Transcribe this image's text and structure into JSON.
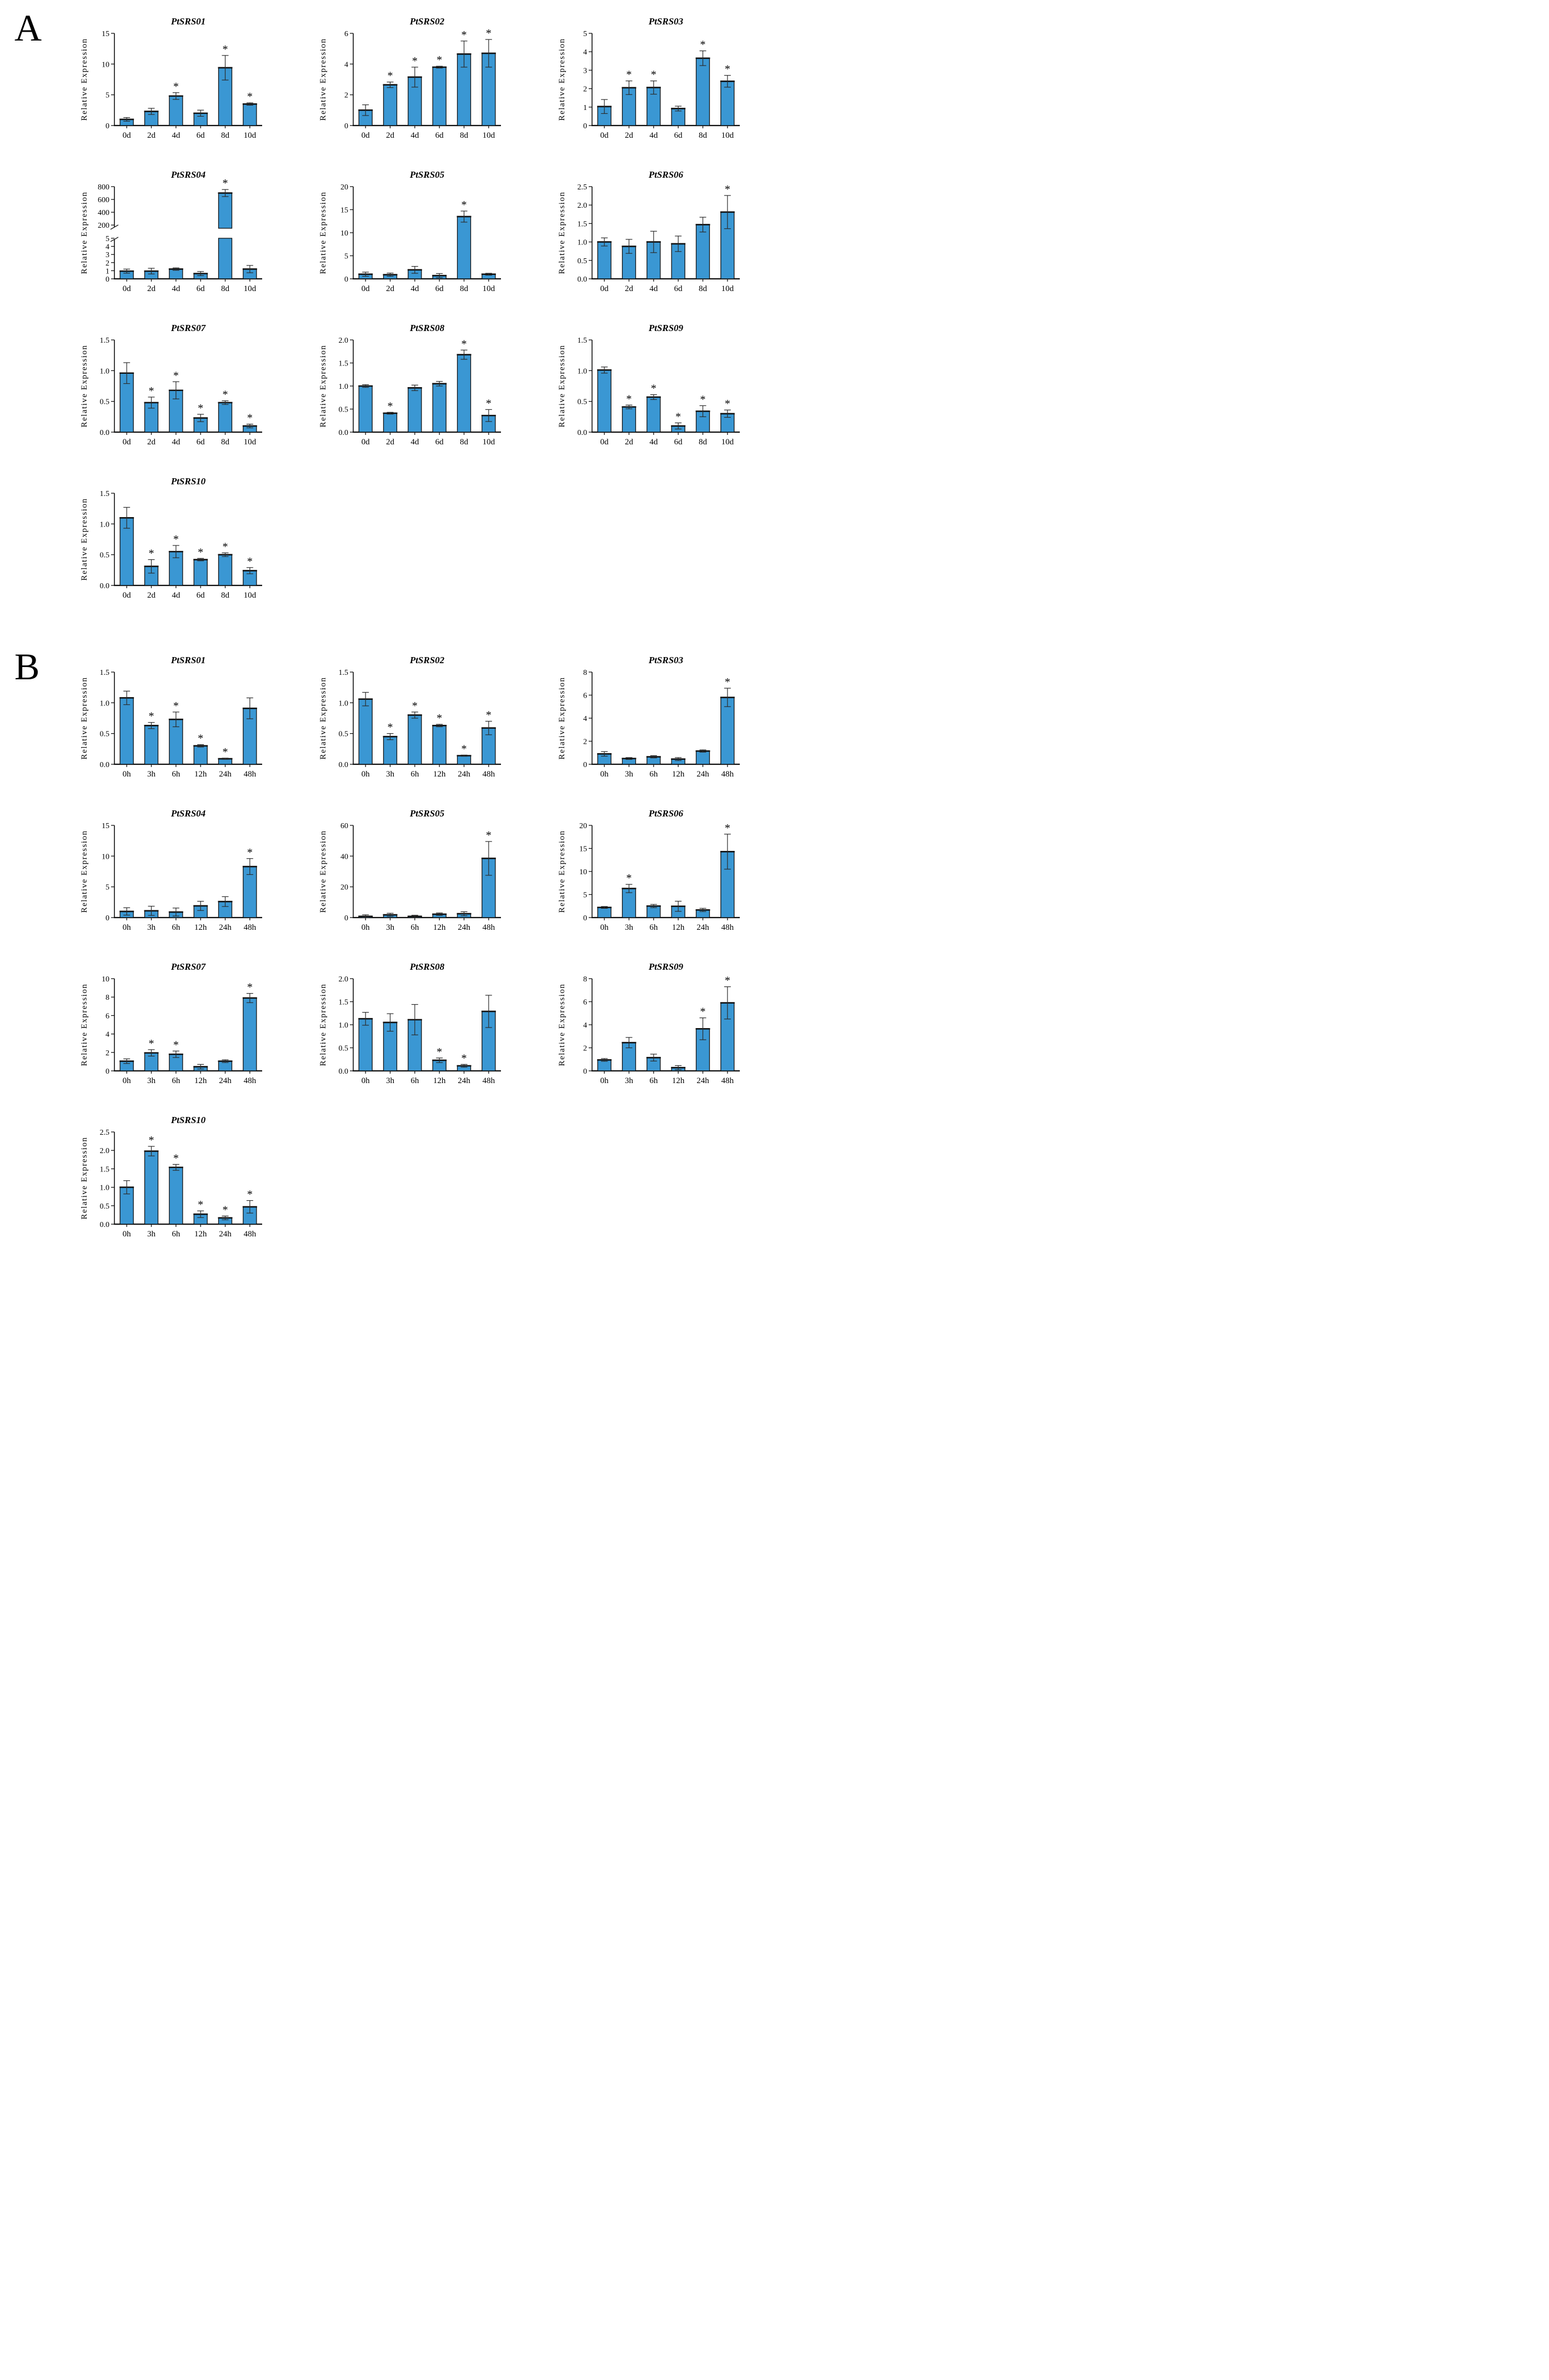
{
  "chart_data": {
    "type": "bar",
    "ylabel": "Relative Expression",
    "bar_color": "#3A97D3",
    "bar_stroke": "#111111",
    "error_color": "#2b2b2b",
    "significance_marker": "*",
    "panels": [
      {
        "label": "A",
        "categories": [
          "0d",
          "2d",
          "4d",
          "6d",
          "8d",
          "10d"
        ],
        "charts": [
          {
            "title": "PtSRS01",
            "ymax": 15,
            "yticks": [
              0,
              5,
              10,
              15
            ],
            "values": [
              1.0,
              2.3,
              4.8,
              2.0,
              9.4,
              3.5
            ],
            "errors": [
              0.3,
              0.5,
              0.55,
              0.5,
              2.0,
              0.2
            ],
            "sig": [
              false,
              false,
              true,
              false,
              true,
              true
            ]
          },
          {
            "title": "PtSRS02",
            "ymax": 6,
            "yticks": [
              0,
              2,
              4,
              6
            ],
            "values": [
              1.0,
              2.65,
              3.15,
              3.8,
              4.65,
              4.7
            ],
            "errors": [
              0.35,
              0.18,
              0.65,
              0.06,
              0.85,
              0.9
            ],
            "sig": [
              false,
              true,
              true,
              true,
              true,
              true
            ]
          },
          {
            "title": "PtSRS03",
            "ymax": 5,
            "yticks": [
              0,
              1,
              2,
              3,
              4,
              5
            ],
            "values": [
              1.03,
              2.05,
              2.06,
              0.92,
              3.65,
              2.4
            ],
            "errors": [
              0.38,
              0.37,
              0.36,
              0.13,
              0.4,
              0.32
            ],
            "sig": [
              false,
              true,
              true,
              false,
              true,
              true
            ]
          },
          {
            "title": "PtSRS04",
            "ymax": 800,
            "yticks": [],
            "axis_break": {
              "lower_max": 5,
              "lower_ticks": [
                0,
                1,
                2,
                3,
                4,
                5
              ],
              "upper_min": 150,
              "upper_max": 800,
              "upper_ticks": [
                200,
                400,
                600,
                800
              ]
            },
            "values": [
              0.95,
              0.95,
              1.2,
              0.65,
              700,
              1.2
            ],
            "errors": [
              0.25,
              0.35,
              0.15,
              0.25,
              55,
              0.45
            ],
            "sig": [
              false,
              false,
              false,
              false,
              true,
              false
            ]
          },
          {
            "title": "PtSRS05",
            "ymax": 20,
            "yticks": [
              0,
              5,
              10,
              15,
              20
            ],
            "values": [
              1.0,
              0.9,
              1.95,
              0.7,
              13.5,
              1.0
            ],
            "errors": [
              0.45,
              0.35,
              0.75,
              0.45,
              1.2,
              0.2
            ],
            "sig": [
              false,
              false,
              false,
              false,
              true,
              false
            ]
          },
          {
            "title": "PtSRS06",
            "ymax": 2.5,
            "yticks": [
              0,
              0.5,
              1,
              1.5,
              2,
              2.5
            ],
            "values": [
              1.0,
              0.88,
              1.0,
              0.95,
              1.47,
              1.81
            ],
            "errors": [
              0.11,
              0.19,
              0.29,
              0.21,
              0.2,
              0.45
            ],
            "sig": [
              false,
              false,
              false,
              false,
              false,
              true
            ]
          },
          {
            "title": "PtSRS07",
            "ymax": 1.5,
            "yticks": [
              0,
              0.5,
              1,
              1.5
            ],
            "values": [
              0.96,
              0.48,
              0.68,
              0.23,
              0.48,
              0.1
            ],
            "errors": [
              0.17,
              0.09,
              0.14,
              0.06,
              0.03,
              0.03
            ],
            "sig": [
              false,
              true,
              true,
              true,
              true,
              true
            ]
          },
          {
            "title": "PtSRS08",
            "ymax": 2,
            "yticks": [
              0,
              0.5,
              1,
              1.5,
              2
            ],
            "values": [
              1.0,
              0.41,
              0.96,
              1.05,
              1.68,
              0.36
            ],
            "errors": [
              0.03,
              0.02,
              0.06,
              0.05,
              0.1,
              0.13
            ],
            "sig": [
              false,
              true,
              false,
              false,
              true,
              true
            ]
          },
          {
            "title": "PtSRS09",
            "ymax": 1.5,
            "yticks": [
              0,
              0.5,
              1,
              1.5
            ],
            "values": [
              1.01,
              0.41,
              0.57,
              0.1,
              0.34,
              0.3
            ],
            "errors": [
              0.05,
              0.03,
              0.04,
              0.05,
              0.09,
              0.06
            ],
            "sig": [
              false,
              true,
              true,
              true,
              true,
              true
            ]
          },
          {
            "title": "PtSRS10",
            "ymax": 1.5,
            "yticks": [
              0,
              0.5,
              1,
              1.5
            ],
            "values": [
              1.1,
              0.31,
              0.55,
              0.42,
              0.5,
              0.24
            ],
            "errors": [
              0.17,
              0.11,
              0.1,
              0.02,
              0.03,
              0.05
            ],
            "sig": [
              false,
              true,
              true,
              true,
              true,
              true
            ]
          }
        ]
      },
      {
        "label": "B",
        "categories": [
          "0h",
          "3h",
          "6h",
          "12h",
          "24h",
          "48h"
        ],
        "charts": [
          {
            "title": "PtSRS01",
            "ymax": 1.5,
            "yticks": [
              0,
              0.5,
              1,
              1.5
            ],
            "values": [
              1.08,
              0.63,
              0.73,
              0.3,
              0.09,
              0.91
            ],
            "errors": [
              0.11,
              0.05,
              0.12,
              0.02,
              0.01,
              0.17
            ],
            "sig": [
              false,
              true,
              true,
              true,
              true,
              false
            ]
          },
          {
            "title": "PtSRS02",
            "ymax": 1.5,
            "yticks": [
              0,
              0.5,
              1,
              1.5
            ],
            "values": [
              1.06,
              0.45,
              0.8,
              0.63,
              0.14,
              0.59
            ],
            "errors": [
              0.11,
              0.05,
              0.05,
              0.02,
              0.01,
              0.11
            ],
            "sig": [
              false,
              true,
              true,
              true,
              true,
              true
            ]
          },
          {
            "title": "PtSRS03",
            "ymax": 8,
            "yticks": [
              0,
              2,
              4,
              6,
              8
            ],
            "values": [
              0.9,
              0.5,
              0.65,
              0.45,
              1.15,
              5.8
            ],
            "errors": [
              0.2,
              0.08,
              0.1,
              0.13,
              0.1,
              0.8
            ],
            "sig": [
              false,
              false,
              false,
              false,
              false,
              true
            ]
          },
          {
            "title": "PtSRS04",
            "ymax": 15,
            "yticks": [
              0,
              5,
              10,
              15
            ],
            "values": [
              1.0,
              1.1,
              0.9,
              1.9,
              2.6,
              8.3
            ],
            "errors": [
              0.6,
              0.75,
              0.65,
              0.75,
              0.8,
              1.3
            ],
            "sig": [
              false,
              false,
              false,
              false,
              false,
              true
            ]
          },
          {
            "title": "PtSRS05",
            "ymax": 60,
            "yticks": [
              0,
              20,
              40,
              60
            ],
            "values": [
              0.8,
              1.8,
              0.8,
              2.2,
              2.5,
              38.5
            ],
            "errors": [
              1.0,
              1.0,
              0.7,
              0.8,
              1.3,
              11.0
            ],
            "sig": [
              false,
              false,
              false,
              false,
              false,
              true
            ]
          },
          {
            "title": "PtSRS06",
            "ymax": 20,
            "yticks": [
              0,
              5,
              10,
              15,
              20
            ],
            "values": [
              2.2,
              6.3,
              2.5,
              2.45,
              1.65,
              14.3
            ],
            "errors": [
              0.2,
              0.9,
              0.35,
              1.1,
              0.35,
              3.8
            ],
            "sig": [
              false,
              true,
              false,
              false,
              false,
              true
            ]
          },
          {
            "title": "PtSRS07",
            "ymax": 10,
            "yticks": [
              0,
              2,
              4,
              6,
              8,
              10
            ],
            "values": [
              1.05,
              1.95,
              1.8,
              0.45,
              1.05,
              7.9
            ],
            "errors": [
              0.25,
              0.35,
              0.35,
              0.25,
              0.15,
              0.5
            ],
            "sig": [
              false,
              true,
              true,
              false,
              false,
              true
            ]
          },
          {
            "title": "PtSRS08",
            "ymax": 2,
            "yticks": [
              0,
              0.5,
              1,
              1.5,
              2
            ],
            "values": [
              1.13,
              1.05,
              1.11,
              0.23,
              0.11,
              1.29
            ],
            "errors": [
              0.14,
              0.19,
              0.33,
              0.05,
              0.03,
              0.35
            ],
            "sig": [
              false,
              false,
              false,
              true,
              true,
              false
            ]
          },
          {
            "title": "PtSRS09",
            "ymax": 8,
            "yticks": [
              0,
              2,
              4,
              6,
              8
            ],
            "values": [
              0.95,
              2.45,
              1.15,
              0.28,
              3.65,
              5.9
            ],
            "errors": [
              0.12,
              0.45,
              0.3,
              0.18,
              0.95,
              1.4
            ],
            "sig": [
              false,
              false,
              false,
              false,
              true,
              true
            ]
          },
          {
            "title": "PtSRS10",
            "ymax": 2.5,
            "yticks": [
              0,
              0.5,
              1,
              1.5,
              2,
              2.5
            ],
            "values": [
              1.0,
              1.98,
              1.54,
              0.27,
              0.17,
              0.47
            ],
            "errors": [
              0.18,
              0.13,
              0.08,
              0.09,
              0.05,
              0.17
            ],
            "sig": [
              false,
              true,
              true,
              true,
              true,
              true
            ]
          }
        ]
      }
    ]
  }
}
